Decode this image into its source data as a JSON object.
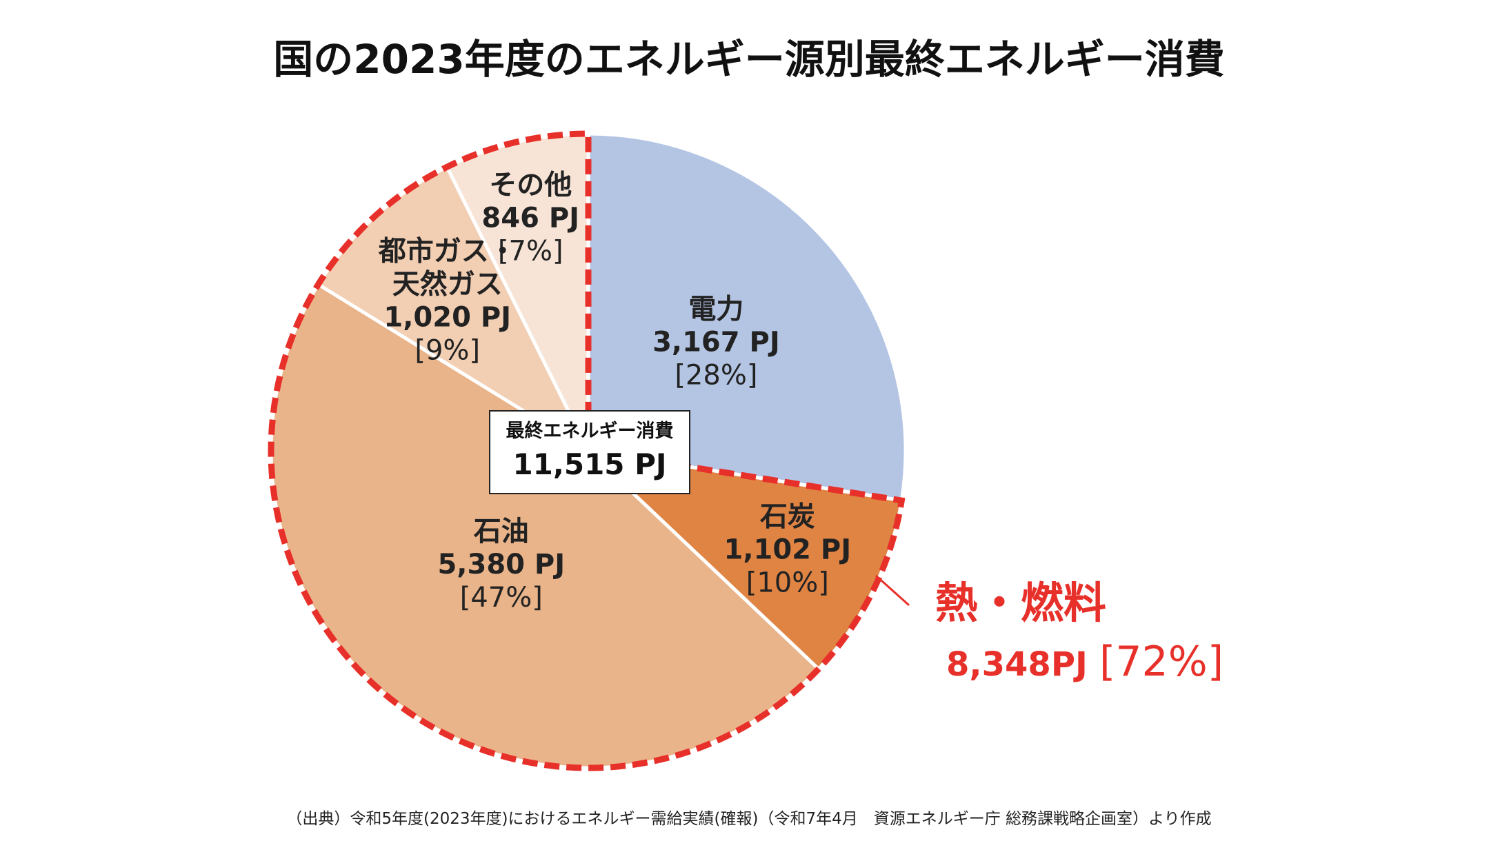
{
  "chart_data": {
    "type": "pie",
    "title": "国の2023年度のエネルギー源別最終エネルギー消費",
    "unit": "PJ",
    "slices": [
      {
        "label_lines": [
          "電力"
        ],
        "value": 3167,
        "value_text": "3,167 PJ",
        "percent": "[28%]",
        "color": "#b4c5e4"
      },
      {
        "label_lines": [
          "石炭"
        ],
        "value": 1102,
        "value_text": "1,102 PJ",
        "percent": "[10%]",
        "color": "#e08444"
      },
      {
        "label_lines": [
          "石油"
        ],
        "value": 5380,
        "value_text": "5,380 PJ",
        "percent": "[47%]",
        "color": "#eab48a"
      },
      {
        "label_lines": [
          "都市ガス・",
          "天然ガス"
        ],
        "value": 1020,
        "value_text": "1,020 PJ",
        "percent": "[9%]",
        "color": "#f2ceb3"
      },
      {
        "label_lines": [
          "その他"
        ],
        "value": 846,
        "value_text": "846 PJ",
        "percent": "[7%]",
        "color": "#f7e4d7"
      }
    ],
    "start_angle_deg": 0,
    "direction": "clockwise",
    "total": {
      "title": "最終エネルギー消費",
      "value_text": "11,515 PJ"
    },
    "highlight": {
      "title": "熱・燃料",
      "value_text": "8,348PJ",
      "percent_text": "[72%]",
      "color": "#e8302a",
      "includes": [
        "石炭",
        "石油",
        "都市ガス・天然ガス",
        "その他"
      ]
    }
  },
  "source": "（出典）令和5年度(2023年度)におけるエネルギー需給実績(確報)（令和7年4月　資源エネルギー庁 総務課戦略企画室）より作成"
}
